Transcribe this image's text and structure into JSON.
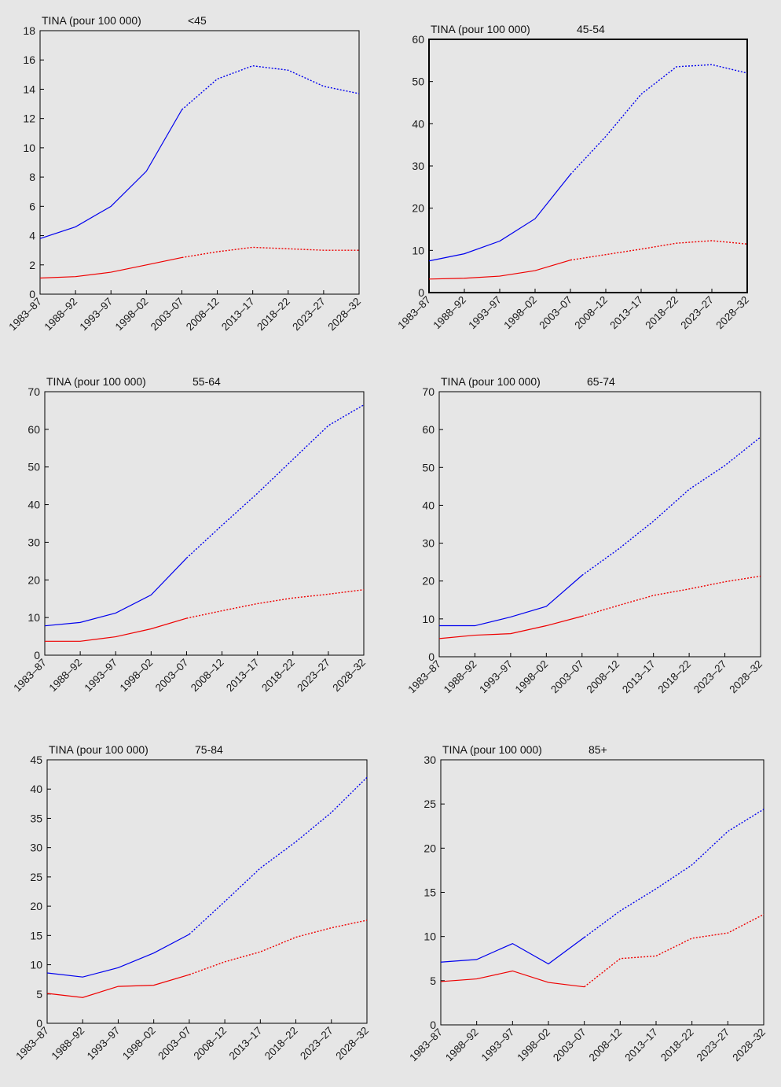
{
  "colors": {
    "background": "#e6e6e6",
    "plot_background": "#e6e6e6",
    "men": "#0000ee",
    "women": "#ee0000",
    "axis": "#000000"
  },
  "chart_data": [
    {
      "type": "line",
      "title": "",
      "ylabel": "TINA (pour 100 000)",
      "age_group": "<45",
      "categories": [
        "1983–87",
        "1988–92",
        "1993–97",
        "1998–02",
        "2003–07",
        "2008–12",
        "2013–17",
        "2018–22",
        "2023–27",
        "2028–32"
      ],
      "ylim": [
        0,
        18
      ],
      "yticks": [
        0,
        2,
        4,
        6,
        8,
        10,
        12,
        14,
        16,
        18
      ],
      "observed_through": "2003–07",
      "projected_from": "2003–07",
      "series": [
        {
          "color": "blue",
          "values": [
            3.8,
            4.6,
            6.0,
            8.4,
            12.6,
            14.7,
            15.6,
            15.3,
            14.2,
            13.7
          ]
        },
        {
          "color": "red",
          "values": [
            1.1,
            1.2,
            1.5,
            2.0,
            2.5,
            2.9,
            3.2,
            3.1,
            3.0,
            3.0
          ]
        }
      ]
    },
    {
      "type": "line",
      "title": "",
      "ylabel": "TINA (pour 100 000)",
      "age_group": "45-54",
      "categories": [
        "1983–87",
        "1988–92",
        "1993–97",
        "1998–02",
        "2003–07",
        "2008–12",
        "2013–17",
        "2018–22",
        "2023–27",
        "2028–32"
      ],
      "ylim": [
        0,
        60
      ],
      "yticks": [
        0,
        10,
        20,
        30,
        40,
        50,
        60
      ],
      "observed_through": "2003–07",
      "projected_from": "2003–07",
      "series": [
        {
          "color": "blue",
          "values": [
            7.5,
            9.2,
            12.2,
            17.5,
            28.0,
            37.0,
            47.0,
            53.5,
            54.0,
            52.0
          ]
        },
        {
          "color": "red",
          "values": [
            3.2,
            3.4,
            3.9,
            5.2,
            7.7,
            9.0,
            10.3,
            11.7,
            12.3,
            11.5
          ]
        }
      ]
    },
    {
      "type": "line",
      "title": "",
      "ylabel": "TINA (pour 100 000)",
      "age_group": "55-64",
      "categories": [
        "1983–87",
        "1988–92",
        "1993–97",
        "1998–02",
        "2003–07",
        "2008–12",
        "2013–17",
        "2018–22",
        "2023–27",
        "2028–32"
      ],
      "ylim": [
        0,
        70
      ],
      "yticks": [
        0,
        10,
        20,
        30,
        40,
        50,
        60,
        70
      ],
      "observed_through": "2003–07",
      "projected_from": "2003–07",
      "series": [
        {
          "color": "blue",
          "values": [
            7.8,
            8.7,
            11.2,
            16.0,
            25.8,
            34.5,
            43.0,
            52.0,
            61.0,
            66.5
          ]
        },
        {
          "color": "red",
          "values": [
            3.7,
            3.7,
            4.9,
            7.0,
            9.8,
            11.8,
            13.7,
            15.2,
            16.2,
            17.4
          ]
        }
      ]
    },
    {
      "type": "line",
      "title": "",
      "ylabel": "TINA (pour 100 000)",
      "age_group": "65-74",
      "categories": [
        "1983–87",
        "1988–92",
        "1993–97",
        "1998–02",
        "2003–07",
        "2008–12",
        "2013–17",
        "2018–22",
        "2023–27",
        "2028–32"
      ],
      "ylim": [
        0,
        70
      ],
      "yticks": [
        0,
        10,
        20,
        30,
        40,
        50,
        60,
        70
      ],
      "observed_through": "2003–07",
      "projected_from": "2003–07",
      "series": [
        {
          "color": "blue",
          "values": [
            8.2,
            8.2,
            10.5,
            13.3,
            21.5,
            28.3,
            35.8,
            44.2,
            50.5,
            58.0
          ]
        },
        {
          "color": "red",
          "values": [
            4.8,
            5.7,
            6.1,
            8.2,
            10.7,
            13.5,
            16.2,
            17.9,
            19.8,
            21.3
          ]
        }
      ]
    },
    {
      "type": "line",
      "title": "",
      "ylabel": "TINA (pour 100 000)",
      "age_group": "75-84",
      "categories": [
        "1983–87",
        "1988–92",
        "1993–97",
        "1998–02",
        "2003–07",
        "2008–12",
        "2013–17",
        "2018–22",
        "2023–27",
        "2028–32"
      ],
      "ylim": [
        0,
        45
      ],
      "yticks": [
        0,
        5,
        10,
        15,
        20,
        25,
        30,
        35,
        40,
        45
      ],
      "observed_through": "2003–07",
      "projected_from": "2003–07",
      "series": [
        {
          "color": "blue",
          "values": [
            8.6,
            7.9,
            9.5,
            12.0,
            15.2,
            20.8,
            26.5,
            31.0,
            36.0,
            42.0
          ]
        },
        {
          "color": "red",
          "values": [
            5.1,
            4.4,
            6.3,
            6.5,
            8.3,
            10.5,
            12.2,
            14.7,
            16.3,
            17.6
          ]
        }
      ]
    },
    {
      "type": "line",
      "title": "",
      "ylabel": "TINA (pour 100 000)",
      "age_group": "85+",
      "categories": [
        "1983–87",
        "1988–92",
        "1993–97",
        "1998–02",
        "2003–07",
        "2008–12",
        "2013–17",
        "2018–22",
        "2023–27",
        "2028–32"
      ],
      "ylim": [
        0,
        30
      ],
      "yticks": [
        0,
        5,
        10,
        15,
        20,
        25,
        30
      ],
      "observed_through": "2003–07",
      "projected_from": "2003–07",
      "series": [
        {
          "color": "blue",
          "values": [
            7.1,
            7.4,
            9.2,
            6.9,
            9.9,
            12.9,
            15.4,
            18.1,
            21.9,
            24.4
          ]
        },
        {
          "color": "red",
          "values": [
            4.9,
            5.2,
            6.1,
            4.8,
            4.3,
            7.5,
            7.8,
            9.8,
            10.4,
            12.5
          ]
        }
      ]
    }
  ]
}
